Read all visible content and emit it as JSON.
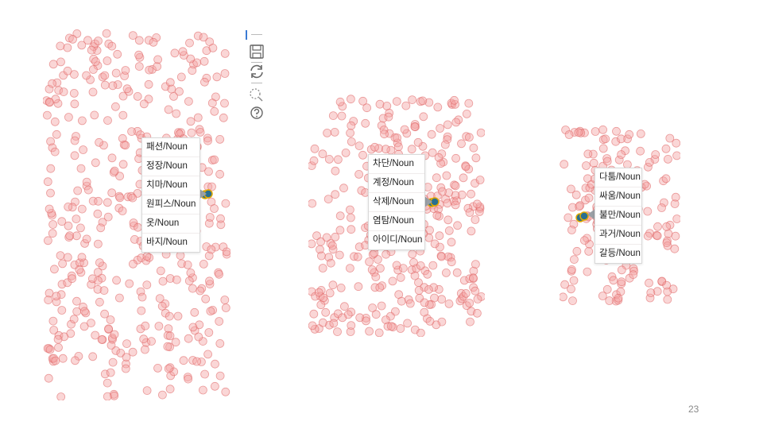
{
  "slide": {
    "page_number": "23"
  },
  "toolbar": {
    "items": [
      {
        "icon": "save-icon"
      },
      {
        "icon": "refresh-icon"
      },
      {
        "icon": "data-zoom-icon"
      },
      {
        "icon": "help-icon"
      }
    ]
  },
  "plots": [
    {
      "tooltip_items": [
        "패션/Noun",
        "정장/Noun",
        "치마/Noun",
        "원피스/Noun",
        "옷/Noun",
        "바지/Noun"
      ]
    },
    {
      "tooltip_items": [
        "차단/Noun",
        "계정/Noun",
        "삭제/Noun",
        "염탐/Noun",
        "아이디/Noun"
      ]
    },
    {
      "tooltip_items": [
        "다툼/Noun",
        "싸움/Noun",
        "불만/Noun",
        "과거/Noun",
        "갈등/Noun"
      ]
    }
  ],
  "colors": {
    "point_fill": "#f4a3a3",
    "point_stroke": "#e06666",
    "highlight_fill": "#2a6f8f",
    "highlight_stroke": "#e0a800"
  }
}
